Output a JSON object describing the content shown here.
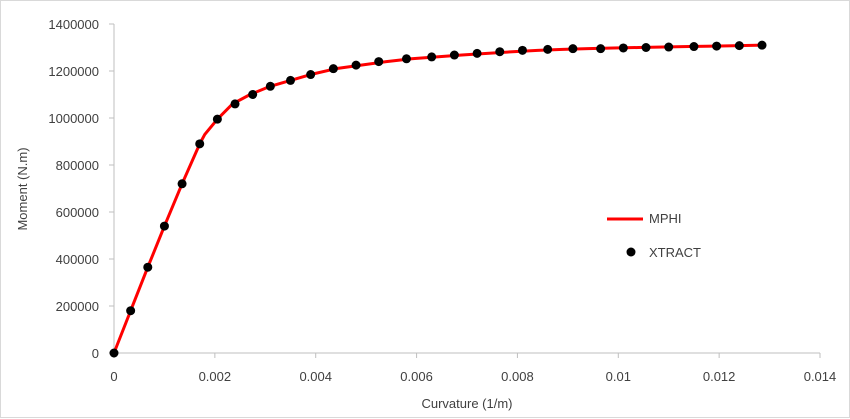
{
  "chart_data": {
    "type": "line",
    "title": "",
    "xlabel": "Curvature (1/m)",
    "ylabel": "Moment (N.m)",
    "xlim": [
      0,
      0.014
    ],
    "ylim": [
      0,
      1400000
    ],
    "x_ticks": [
      "0",
      "0.002",
      "0.004",
      "0.006",
      "0.008",
      "0.01",
      "0.012",
      "0.014"
    ],
    "y_ticks": [
      "0",
      "200000",
      "400000",
      "600000",
      "800000",
      "1000000",
      "1200000",
      "1400000"
    ],
    "grid": false,
    "legend_position": "center-right",
    "series": [
      {
        "name": "MPHI",
        "style": "line",
        "color": "#ff0000",
        "x": [
          0,
          0.00033,
          0.00067,
          0.001,
          0.00135,
          0.0017,
          0.0018,
          0.00205,
          0.00235,
          0.0027,
          0.0031,
          0.0035,
          0.0039,
          0.0044,
          0.0049,
          0.0054,
          0.0059,
          0.0064,
          0.0069,
          0.0074,
          0.0079,
          0.0084,
          0.0089,
          0.0094,
          0.0099,
          0.0104,
          0.0109,
          0.0114,
          0.0119,
          0.0124,
          0.0129
        ],
        "y": [
          0,
          180000,
          365000,
          540000,
          720000,
          890000,
          930000,
          995000,
          1060000,
          1100000,
          1135000,
          1160000,
          1185000,
          1210000,
          1225000,
          1240000,
          1252000,
          1260000,
          1268000,
          1275000,
          1282000,
          1288000,
          1292000,
          1295000,
          1298000,
          1300000,
          1302000,
          1304000,
          1306000,
          1308000,
          1310000
        ]
      },
      {
        "name": "XTRACT",
        "style": "markers",
        "color": "#000000",
        "x": [
          0,
          0.00033,
          0.00067,
          0.001,
          0.00135,
          0.0017,
          0.00205,
          0.0024,
          0.00275,
          0.0031,
          0.0035,
          0.0039,
          0.00435,
          0.0048,
          0.00525,
          0.0058,
          0.0063,
          0.00675,
          0.0072,
          0.00765,
          0.0081,
          0.0086,
          0.0091,
          0.00965,
          0.0101,
          0.01055,
          0.011,
          0.0115,
          0.01195,
          0.0124,
          0.01285
        ],
        "y": [
          0,
          180000,
          365000,
          540000,
          720000,
          890000,
          995000,
          1060000,
          1100000,
          1135000,
          1160000,
          1185000,
          1210000,
          1225000,
          1240000,
          1252000,
          1260000,
          1268000,
          1275000,
          1282000,
          1288000,
          1292000,
          1295000,
          1295000,
          1298000,
          1300000,
          1302000,
          1304000,
          1306000,
          1308000,
          1310000
        ]
      }
    ]
  }
}
